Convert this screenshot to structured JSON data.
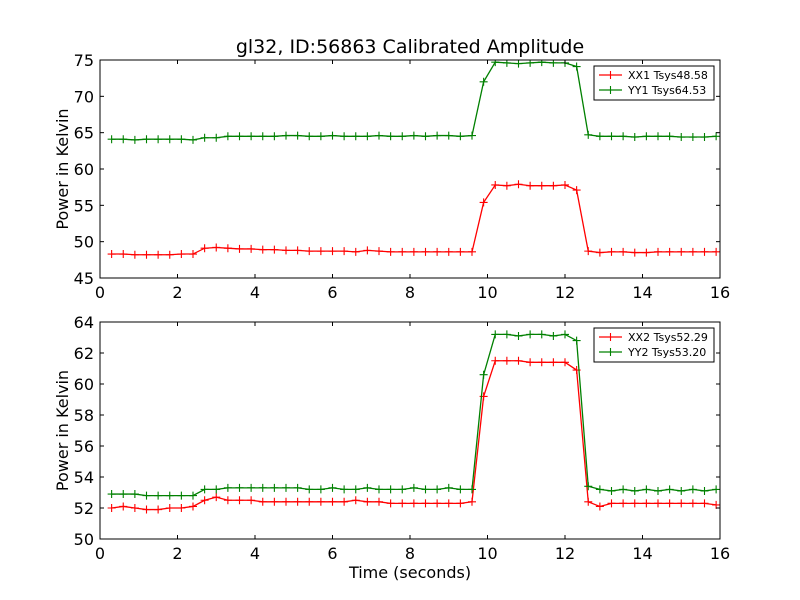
{
  "chart_data": [
    {
      "type": "line",
      "title": "gl32, ID:56863 Calibrated Amplitude",
      "xlabel": "",
      "ylabel": "Power in Kelvin",
      "xlim": [
        0,
        16
      ],
      "ylim": [
        45,
        75
      ],
      "xticks": [
        "0",
        "2",
        "4",
        "6",
        "8",
        "10",
        "12",
        "14",
        "16"
      ],
      "yticks": [
        "45",
        "50",
        "55",
        "60",
        "65",
        "70",
        "75"
      ],
      "grid": false,
      "legend_position": "top-right",
      "x": [
        0.3,
        0.6,
        0.9,
        1.2,
        1.5,
        1.8,
        2.1,
        2.4,
        2.7,
        3.0,
        3.3,
        3.6,
        3.9,
        4.2,
        4.5,
        4.8,
        5.1,
        5.4,
        5.7,
        6.0,
        6.3,
        6.6,
        6.9,
        7.2,
        7.5,
        7.8,
        8.1,
        8.4,
        8.7,
        9.0,
        9.3,
        9.6,
        9.9,
        10.2,
        10.5,
        10.8,
        11.1,
        11.4,
        11.7,
        12.0,
        12.3,
        12.6,
        12.9,
        13.2,
        13.5,
        13.8,
        14.1,
        14.4,
        14.7,
        15.0,
        15.3,
        15.6,
        15.9
      ],
      "series": [
        {
          "name": "XX1 Tsys48.58",
          "color": "#ff0000",
          "values": [
            48.3,
            48.3,
            48.2,
            48.2,
            48.2,
            48.2,
            48.3,
            48.3,
            49.1,
            49.2,
            49.1,
            49.0,
            49.0,
            48.9,
            48.9,
            48.8,
            48.8,
            48.7,
            48.7,
            48.7,
            48.7,
            48.6,
            48.8,
            48.7,
            48.6,
            48.6,
            48.6,
            48.6,
            48.6,
            48.6,
            48.6,
            48.6,
            55.4,
            57.8,
            57.7,
            57.9,
            57.7,
            57.7,
            57.7,
            57.8,
            57.1,
            48.7,
            48.5,
            48.6,
            48.6,
            48.5,
            48.5,
            48.6,
            48.6,
            48.6,
            48.6,
            48.6,
            48.6
          ]
        },
        {
          "name": "YY1 Tsys64.53",
          "color": "#008000",
          "values": [
            64.1,
            64.1,
            64.0,
            64.1,
            64.1,
            64.1,
            64.1,
            64.0,
            64.3,
            64.3,
            64.5,
            64.5,
            64.5,
            64.5,
            64.5,
            64.6,
            64.6,
            64.5,
            64.5,
            64.6,
            64.5,
            64.5,
            64.5,
            64.6,
            64.5,
            64.5,
            64.6,
            64.5,
            64.6,
            64.6,
            64.5,
            64.6,
            72.0,
            74.7,
            74.6,
            74.5,
            74.6,
            74.7,
            74.6,
            74.6,
            74.1,
            64.7,
            64.5,
            64.5,
            64.5,
            64.4,
            64.5,
            64.5,
            64.5,
            64.4,
            64.4,
            64.4,
            64.5
          ]
        }
      ]
    },
    {
      "type": "line",
      "title": "",
      "xlabel": "Time (seconds)",
      "ylabel": "Power in Kelvin",
      "xlim": [
        0,
        16
      ],
      "ylim": [
        50,
        64
      ],
      "xticks": [
        "0",
        "2",
        "4",
        "6",
        "8",
        "10",
        "12",
        "14",
        "16"
      ],
      "yticks": [
        "50",
        "52",
        "54",
        "56",
        "58",
        "60",
        "62",
        "64"
      ],
      "grid": false,
      "legend_position": "top-right",
      "x": [
        0.3,
        0.6,
        0.9,
        1.2,
        1.5,
        1.8,
        2.1,
        2.4,
        2.7,
        3.0,
        3.3,
        3.6,
        3.9,
        4.2,
        4.5,
        4.8,
        5.1,
        5.4,
        5.7,
        6.0,
        6.3,
        6.6,
        6.9,
        7.2,
        7.5,
        7.8,
        8.1,
        8.4,
        8.7,
        9.0,
        9.3,
        9.6,
        9.9,
        10.2,
        10.5,
        10.8,
        11.1,
        11.4,
        11.7,
        12.0,
        12.3,
        12.6,
        12.9,
        13.2,
        13.5,
        13.8,
        14.1,
        14.4,
        14.7,
        15.0,
        15.3,
        15.6,
        15.9
      ],
      "series": [
        {
          "name": "XX2 Tsys52.29",
          "color": "#ff0000",
          "values": [
            52.0,
            52.1,
            52.0,
            51.9,
            51.9,
            52.0,
            52.0,
            52.1,
            52.5,
            52.7,
            52.5,
            52.5,
            52.5,
            52.4,
            52.4,
            52.4,
            52.4,
            52.4,
            52.4,
            52.4,
            52.4,
            52.5,
            52.4,
            52.4,
            52.3,
            52.3,
            52.3,
            52.3,
            52.3,
            52.3,
            52.3,
            52.4,
            59.2,
            61.5,
            61.5,
            61.5,
            61.4,
            61.4,
            61.4,
            61.4,
            60.9,
            52.4,
            52.1,
            52.3,
            52.3,
            52.3,
            52.3,
            52.3,
            52.3,
            52.3,
            52.3,
            52.3,
            52.2
          ]
        },
        {
          "name": "YY2 Tsys53.20",
          "color": "#008000",
          "values": [
            52.9,
            52.9,
            52.9,
            52.8,
            52.8,
            52.8,
            52.8,
            52.8,
            53.2,
            53.2,
            53.3,
            53.3,
            53.3,
            53.3,
            53.3,
            53.3,
            53.3,
            53.2,
            53.2,
            53.3,
            53.2,
            53.2,
            53.3,
            53.2,
            53.2,
            53.2,
            53.3,
            53.2,
            53.2,
            53.3,
            53.2,
            53.2,
            60.6,
            63.2,
            63.2,
            63.1,
            63.2,
            63.2,
            63.1,
            63.2,
            62.8,
            53.4,
            53.2,
            53.1,
            53.2,
            53.1,
            53.2,
            53.1,
            53.2,
            53.1,
            53.2,
            53.1,
            53.2
          ]
        }
      ]
    }
  ]
}
